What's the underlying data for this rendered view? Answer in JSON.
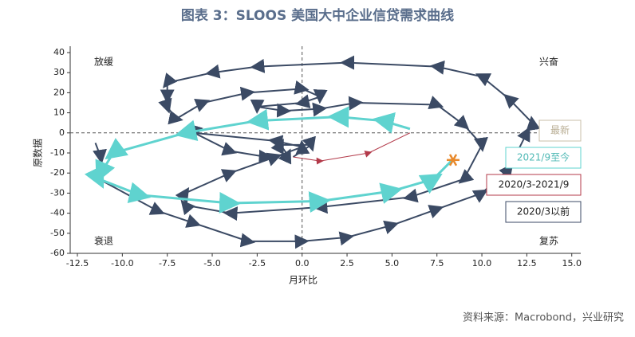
{
  "chart_data": {
    "type": "line",
    "title": "图表 3：SLOOS 美国大中企业信贷需求曲线",
    "x_label": "月环比",
    "y_label": "原数据",
    "quadrant_labels": {
      "top_left": "放缓",
      "top_right": "兴奋",
      "bottom_left": "衰退",
      "bottom_right": "复苏"
    },
    "source": "资料来源：Macrobond，兴业研究",
    "latest_label": "最新",
    "latest_point": {
      "x": 8.4,
      "y": -13.5,
      "color": "#e8892b"
    },
    "xlim": [
      -12.9,
      15.5
    ],
    "ylim": [
      -60,
      40
    ],
    "xticks": [
      -12.5,
      {
        "value": -10,
        "label": "-10.0"
      },
      -7.5,
      {
        "value": -5,
        "label": "-5.0"
      },
      -2.5,
      {
        "value": 0,
        "label": "0.0"
      },
      2.5,
      {
        "value": 5,
        "label": "5.0"
      },
      7.5,
      {
        "value": 10,
        "label": "10.0"
      },
      12.5,
      {
        "value": 15,
        "label": "15.0"
      }
    ],
    "yticks": [
      -60,
      -50,
      -40,
      -30,
      -20,
      -10,
      0,
      10,
      20,
      30,
      40
    ],
    "series": [
      {
        "name": "2020/3以前",
        "color": "#3b4a64",
        "x": [
          -11.5,
          -11.2,
          -11.3,
          -8,
          -6,
          -3,
          0,
          2.5,
          5,
          7.5,
          10,
          11.5,
          12.5,
          12.8,
          11.5,
          10,
          7.5,
          2.5,
          -2.5,
          -5,
          -7.5,
          -7.5,
          -7.5,
          -7,
          -5.5,
          -3,
          0,
          1,
          0,
          -2.5,
          -1,
          1,
          3,
          7.5,
          9,
          10,
          9,
          6,
          1,
          -4,
          -6.5,
          -6.5,
          -4,
          -1.5,
          0,
          -1.5,
          -6,
          -4,
          -2,
          -0.8,
          -1.2,
          0.5,
          -0.5
        ],
        "values": [
          -5,
          -12,
          -23,
          -39,
          -45,
          -54,
          -54,
          -52,
          -46,
          -38,
          -30,
          -18,
          0,
          5,
          17,
          28,
          33,
          35,
          33,
          30,
          25,
          18,
          13,
          7,
          15,
          20,
          22,
          18,
          15,
          13,
          11,
          12,
          15,
          14,
          4,
          -6,
          -23,
          -32,
          -37,
          -40,
          -36,
          -30,
          -20,
          -12,
          -7,
          -4,
          0,
          -9,
          -12,
          -11,
          -6,
          -6,
          -12
        ]
      },
      {
        "name": "2020/3-2021/9",
        "color": "#b33a4a",
        "x": [
          -0.5,
          1,
          3.7,
          6
        ],
        "values": [
          -12,
          -14,
          -10,
          0
        ]
      },
      {
        "name": "2021/9至今",
        "color": "#5fd3cf",
        "x": [
          6,
          4.5,
          2,
          -2.5,
          -6.5,
          -10.5,
          -11.2,
          -11.3,
          -9,
          -4,
          1,
          5,
          7.3,
          8.3
        ],
        "values": [
          2,
          6,
          8,
          6,
          0,
          -10,
          -20,
          -23,
          -31,
          -35,
          -34,
          -29,
          -23,
          -14
        ]
      }
    ]
  }
}
